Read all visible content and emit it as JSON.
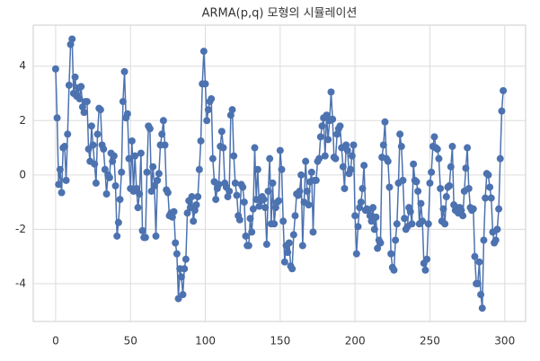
{
  "chart_data": {
    "type": "line",
    "title": "ARMA(p,q) 모형의 시뮬레이션",
    "x": [
      0,
      1,
      2,
      3,
      4,
      5,
      6,
      7,
      8,
      9,
      10,
      11,
      12,
      13,
      14,
      15,
      16,
      17,
      18,
      19,
      20,
      21,
      22,
      23,
      24,
      25,
      26,
      27,
      28,
      29,
      30,
      31,
      32,
      33,
      34,
      35,
      36,
      37,
      38,
      39,
      40,
      41,
      42,
      43,
      44,
      45,
      46,
      47,
      48,
      49,
      50,
      51,
      52,
      53,
      54,
      55,
      56,
      57,
      58,
      59,
      60,
      61,
      62,
      63,
      64,
      65,
      66,
      67,
      68,
      69,
      70,
      71,
      72,
      73,
      74,
      75,
      76,
      77,
      78,
      79,
      80,
      81,
      82,
      83,
      84,
      85,
      86,
      87,
      88,
      89,
      90,
      91,
      92,
      93,
      94,
      95,
      96,
      97,
      98,
      99,
      100,
      101,
      102,
      103,
      104,
      105,
      106,
      107,
      108,
      109,
      110,
      111,
      112,
      113,
      114,
      115,
      116,
      117,
      118,
      119,
      120,
      121,
      122,
      123,
      124,
      125,
      126,
      127,
      128,
      129,
      130,
      131,
      132,
      133,
      134,
      135,
      136,
      137,
      138,
      139,
      140,
      141,
      142,
      143,
      144,
      145,
      146,
      147,
      148,
      149,
      150,
      151,
      152,
      153,
      154,
      155,
      156,
      157,
      158,
      159,
      160,
      161,
      162,
      163,
      164,
      165,
      166,
      167,
      168,
      169,
      170,
      171,
      172,
      173,
      174,
      175,
      176,
      177,
      178,
      179,
      180,
      181,
      182,
      183,
      184,
      185,
      186,
      187,
      188,
      189,
      190,
      191,
      192,
      193,
      194,
      195,
      196,
      197,
      198,
      199,
      200,
      201,
      202,
      203,
      204,
      205,
      206,
      207,
      208,
      209,
      210,
      211,
      212,
      213,
      214,
      215,
      216,
      217,
      218,
      219,
      220,
      221,
      222,
      223,
      224,
      225,
      226,
      227,
      228,
      229,
      230,
      231,
      232,
      233,
      234,
      235,
      236,
      237,
      238,
      239,
      240,
      241,
      242,
      243,
      244,
      245,
      246,
      247,
      248,
      249,
      250,
      251,
      252,
      253,
      254,
      255,
      256,
      257,
      258,
      259,
      260,
      261,
      262,
      263,
      264,
      265,
      266,
      267,
      268,
      269,
      270,
      271,
      272,
      273,
      274,
      275,
      276,
      277,
      278,
      279,
      280,
      281,
      282,
      283,
      284,
      285,
      286,
      287,
      288,
      289,
      290,
      291,
      292,
      293,
      294,
      295,
      296,
      297,
      298,
      299
    ],
    "values": [
      3.9,
      2.1,
      -0.35,
      0.2,
      -0.65,
      1.0,
      1.05,
      -0.2,
      1.5,
      3.3,
      4.8,
      5.0,
      3.0,
      3.6,
      2.9,
      3.2,
      2.8,
      3.25,
      2.5,
      2.3,
      2.7,
      2.7,
      0.95,
      0.5,
      1.8,
      1.1,
      0.4,
      -0.3,
      1.5,
      2.45,
      2.4,
      1.1,
      0.95,
      0.2,
      -0.7,
      0.0,
      -0.1,
      0.8,
      0.5,
      0.7,
      -0.4,
      -2.25,
      -1.75,
      -0.9,
      0.1,
      2.7,
      3.8,
      2.1,
      2.25,
      0.6,
      -0.5,
      1.25,
      -0.6,
      0.7,
      -0.5,
      -1.2,
      -0.7,
      0.8,
      -2.05,
      -2.3,
      -2.3,
      0.1,
      1.8,
      1.7,
      -0.6,
      0.3,
      -0.4,
      -2.25,
      -0.2,
      0.05,
      1.1,
      1.5,
      2.0,
      1.1,
      -0.55,
      -0.65,
      -1.5,
      -1.4,
      -1.55,
      -1.35,
      -2.5,
      -2.9,
      -4.55,
      -3.45,
      -3.75,
      -4.4,
      -3.45,
      -3.1,
      -1.4,
      -0.95,
      -1.2,
      -0.8,
      -1.7,
      -1.3,
      -1.1,
      -0.8,
      0.2,
      1.25,
      3.35,
      4.55,
      3.35,
      2.0,
      2.4,
      2.7,
      2.8,
      0.6,
      -0.25,
      -0.9,
      -0.5,
      -0.35,
      1.05,
      1.6,
      1.0,
      -0.3,
      -0.45,
      -0.8,
      -0.6,
      2.2,
      2.4,
      0.7,
      -0.3,
      -0.75,
      -1.5,
      -1.65,
      -0.35,
      -0.45,
      -1.0,
      -2.25,
      -2.6,
      -2.6,
      -1.6,
      -2.1,
      -1.25,
      1.0,
      -0.9,
      0.2,
      -1.15,
      -0.95,
      -0.8,
      -0.9,
      -1.2,
      -2.55,
      -0.6,
      0.6,
      -1.8,
      -0.3,
      -1.8,
      -1.2,
      -1.0,
      -0.95,
      0.9,
      0.2,
      -1.7,
      -3.2,
      -2.6,
      -2.85,
      -2.5,
      -3.35,
      -3.45,
      -2.2,
      -1.5,
      -0.7,
      -0.75,
      -0.6,
      0.0,
      -2.6,
      -1.0,
      0.5,
      -0.6,
      -1.1,
      -0.25,
      0.1,
      -2.1,
      -0.2,
      -0.2,
      0.5,
      0.6,
      1.4,
      1.8,
      2.1,
      0.7,
      2.2,
      1.3,
      2.0,
      3.05,
      2.05,
      0.65,
      0.6,
      1.5,
      1.7,
      1.8,
      1.0,
      0.3,
      -0.5,
      1.1,
      0.9,
      0.05,
      0.2,
      0.7,
      1.1,
      -1.5,
      -2.9,
      -1.9,
      -1.2,
      -1.0,
      -0.5,
      0.35,
      -1.3,
      -1.25,
      -1.3,
      -1.5,
      -1.7,
      -1.2,
      -2.0,
      -1.55,
      -2.7,
      -2.4,
      -2.5,
      0.65,
      1.1,
      1.95,
      0.6,
      0.5,
      -0.45,
      -2.9,
      -3.4,
      -3.5,
      -2.4,
      -1.8,
      -0.3,
      1.5,
      1.05,
      -0.2,
      -1.6,
      -2.0,
      -1.9,
      -1.2,
      -1.35,
      -1.8,
      0.4,
      -0.2,
      -0.25,
      -0.6,
      -1.8,
      -1.05,
      -1.7,
      -3.25,
      -3.5,
      -3.1,
      -1.8,
      -0.3,
      0.1,
      1.05,
      1.4,
      1.0,
      0.95,
      0.6,
      -0.5,
      -1.7,
      -1.25,
      -1.8,
      -0.8,
      -0.45,
      -0.4,
      0.3,
      1.05,
      -1.1,
      -1.3,
      -1.2,
      -1.4,
      -1.2,
      -1.3,
      -1.5,
      -0.6,
      0.25,
      1.0,
      -0.5,
      -1.2,
      -1.3,
      -1.25,
      -3.0,
      -4.0,
      -4.0,
      -3.2,
      -4.4,
      -4.9,
      -2.4,
      -0.85,
      0.05,
      0.0,
      -0.45,
      -0.85,
      -2.1,
      -2.5,
      -2.4,
      -2.0,
      -1.25,
      0.6,
      2.35,
      3.1
    ],
    "color": "#4c72b0",
    "xlim": [
      -14.95,
      313.95
    ],
    "xticks": [
      0,
      50,
      100,
      150,
      200,
      250,
      300
    ],
    "ylim": [
      -5.39,
      5.51
    ],
    "yticks": [
      -4,
      -2,
      0,
      2,
      4
    ],
    "grid": true,
    "markers": true
  }
}
